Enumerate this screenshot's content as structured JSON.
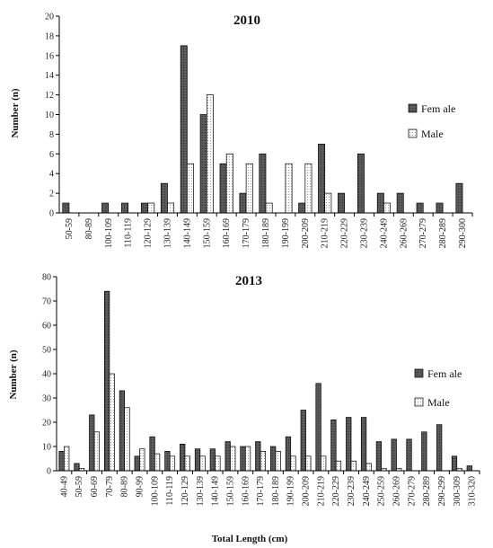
{
  "chart_data": [
    {
      "type": "bar",
      "title": "2010",
      "xlabel": "",
      "ylabel": "Number  (n)",
      "ylim": [
        0,
        20
      ],
      "yticks": [
        0,
        2,
        4,
        6,
        8,
        10,
        12,
        14,
        16,
        18,
        20
      ],
      "grid": false,
      "legend_position": "right",
      "categories": [
        "50-59",
        "80-89",
        "100-109",
        "110-119",
        "120-129",
        "130-139",
        "140-149",
        "150-159",
        "160-169",
        "170-179",
        "180-189",
        "190-199",
        "200-209",
        "210-219",
        "220-229",
        "230-239",
        "240-249",
        "260-269",
        "270-279",
        "280-289",
        "290-300"
      ],
      "series": [
        {
          "name": "Fem ale",
          "values": [
            1,
            0,
            1,
            1,
            1,
            3,
            17,
            10,
            5,
            2,
            6,
            0,
            1,
            7,
            2,
            6,
            2,
            2,
            1,
            1,
            3
          ]
        },
        {
          "name": "Male",
          "values": [
            0,
            0,
            0,
            0,
            1,
            1,
            5,
            12,
            6,
            5,
            1,
            5,
            5,
            2,
            0,
            0,
            1,
            0,
            0,
            0,
            0
          ]
        }
      ]
    },
    {
      "type": "bar",
      "title": "2013",
      "xlabel": "Total Length (cm)",
      "ylabel": "Number  (n)",
      "ylim": [
        0,
        80
      ],
      "yticks": [
        0,
        10,
        20,
        30,
        40,
        50,
        60,
        70,
        80
      ],
      "grid": false,
      "legend_position": "right",
      "categories": [
        "40-49",
        "50-59",
        "60-69",
        "70-79",
        "80-89",
        "90-99",
        "100-109",
        "110-119",
        "120-129",
        "130-139",
        "140-149",
        "150-159",
        "160-169",
        "170-179",
        "180-189",
        "190-199",
        "200-209",
        "210-219",
        "220-229",
        "230-239",
        "240-249",
        "250-259",
        "260-269",
        "270-279",
        "280-289",
        "290-299",
        "300-309",
        "310-320"
      ],
      "series": [
        {
          "name": "Fem ale",
          "values": [
            8,
            3,
            23,
            74,
            33,
            6,
            14,
            8,
            11,
            9,
            9,
            12,
            10,
            12,
            10,
            14,
            25,
            36,
            21,
            22,
            22,
            12,
            13,
            13,
            16,
            19,
            6,
            2
          ]
        },
        {
          "name": "Male",
          "values": [
            10,
            1,
            16,
            40,
            26,
            9,
            7,
            6,
            6,
            6,
            6,
            10,
            10,
            8,
            8,
            6,
            6,
            6,
            4,
            4,
            3,
            1,
            1,
            0,
            0,
            0,
            1,
            0
          ]
        }
      ]
    }
  ],
  "colors": {
    "female_fill": "#4a4a4a",
    "male_fill": "#f4f4f4",
    "axis": "#000000"
  }
}
